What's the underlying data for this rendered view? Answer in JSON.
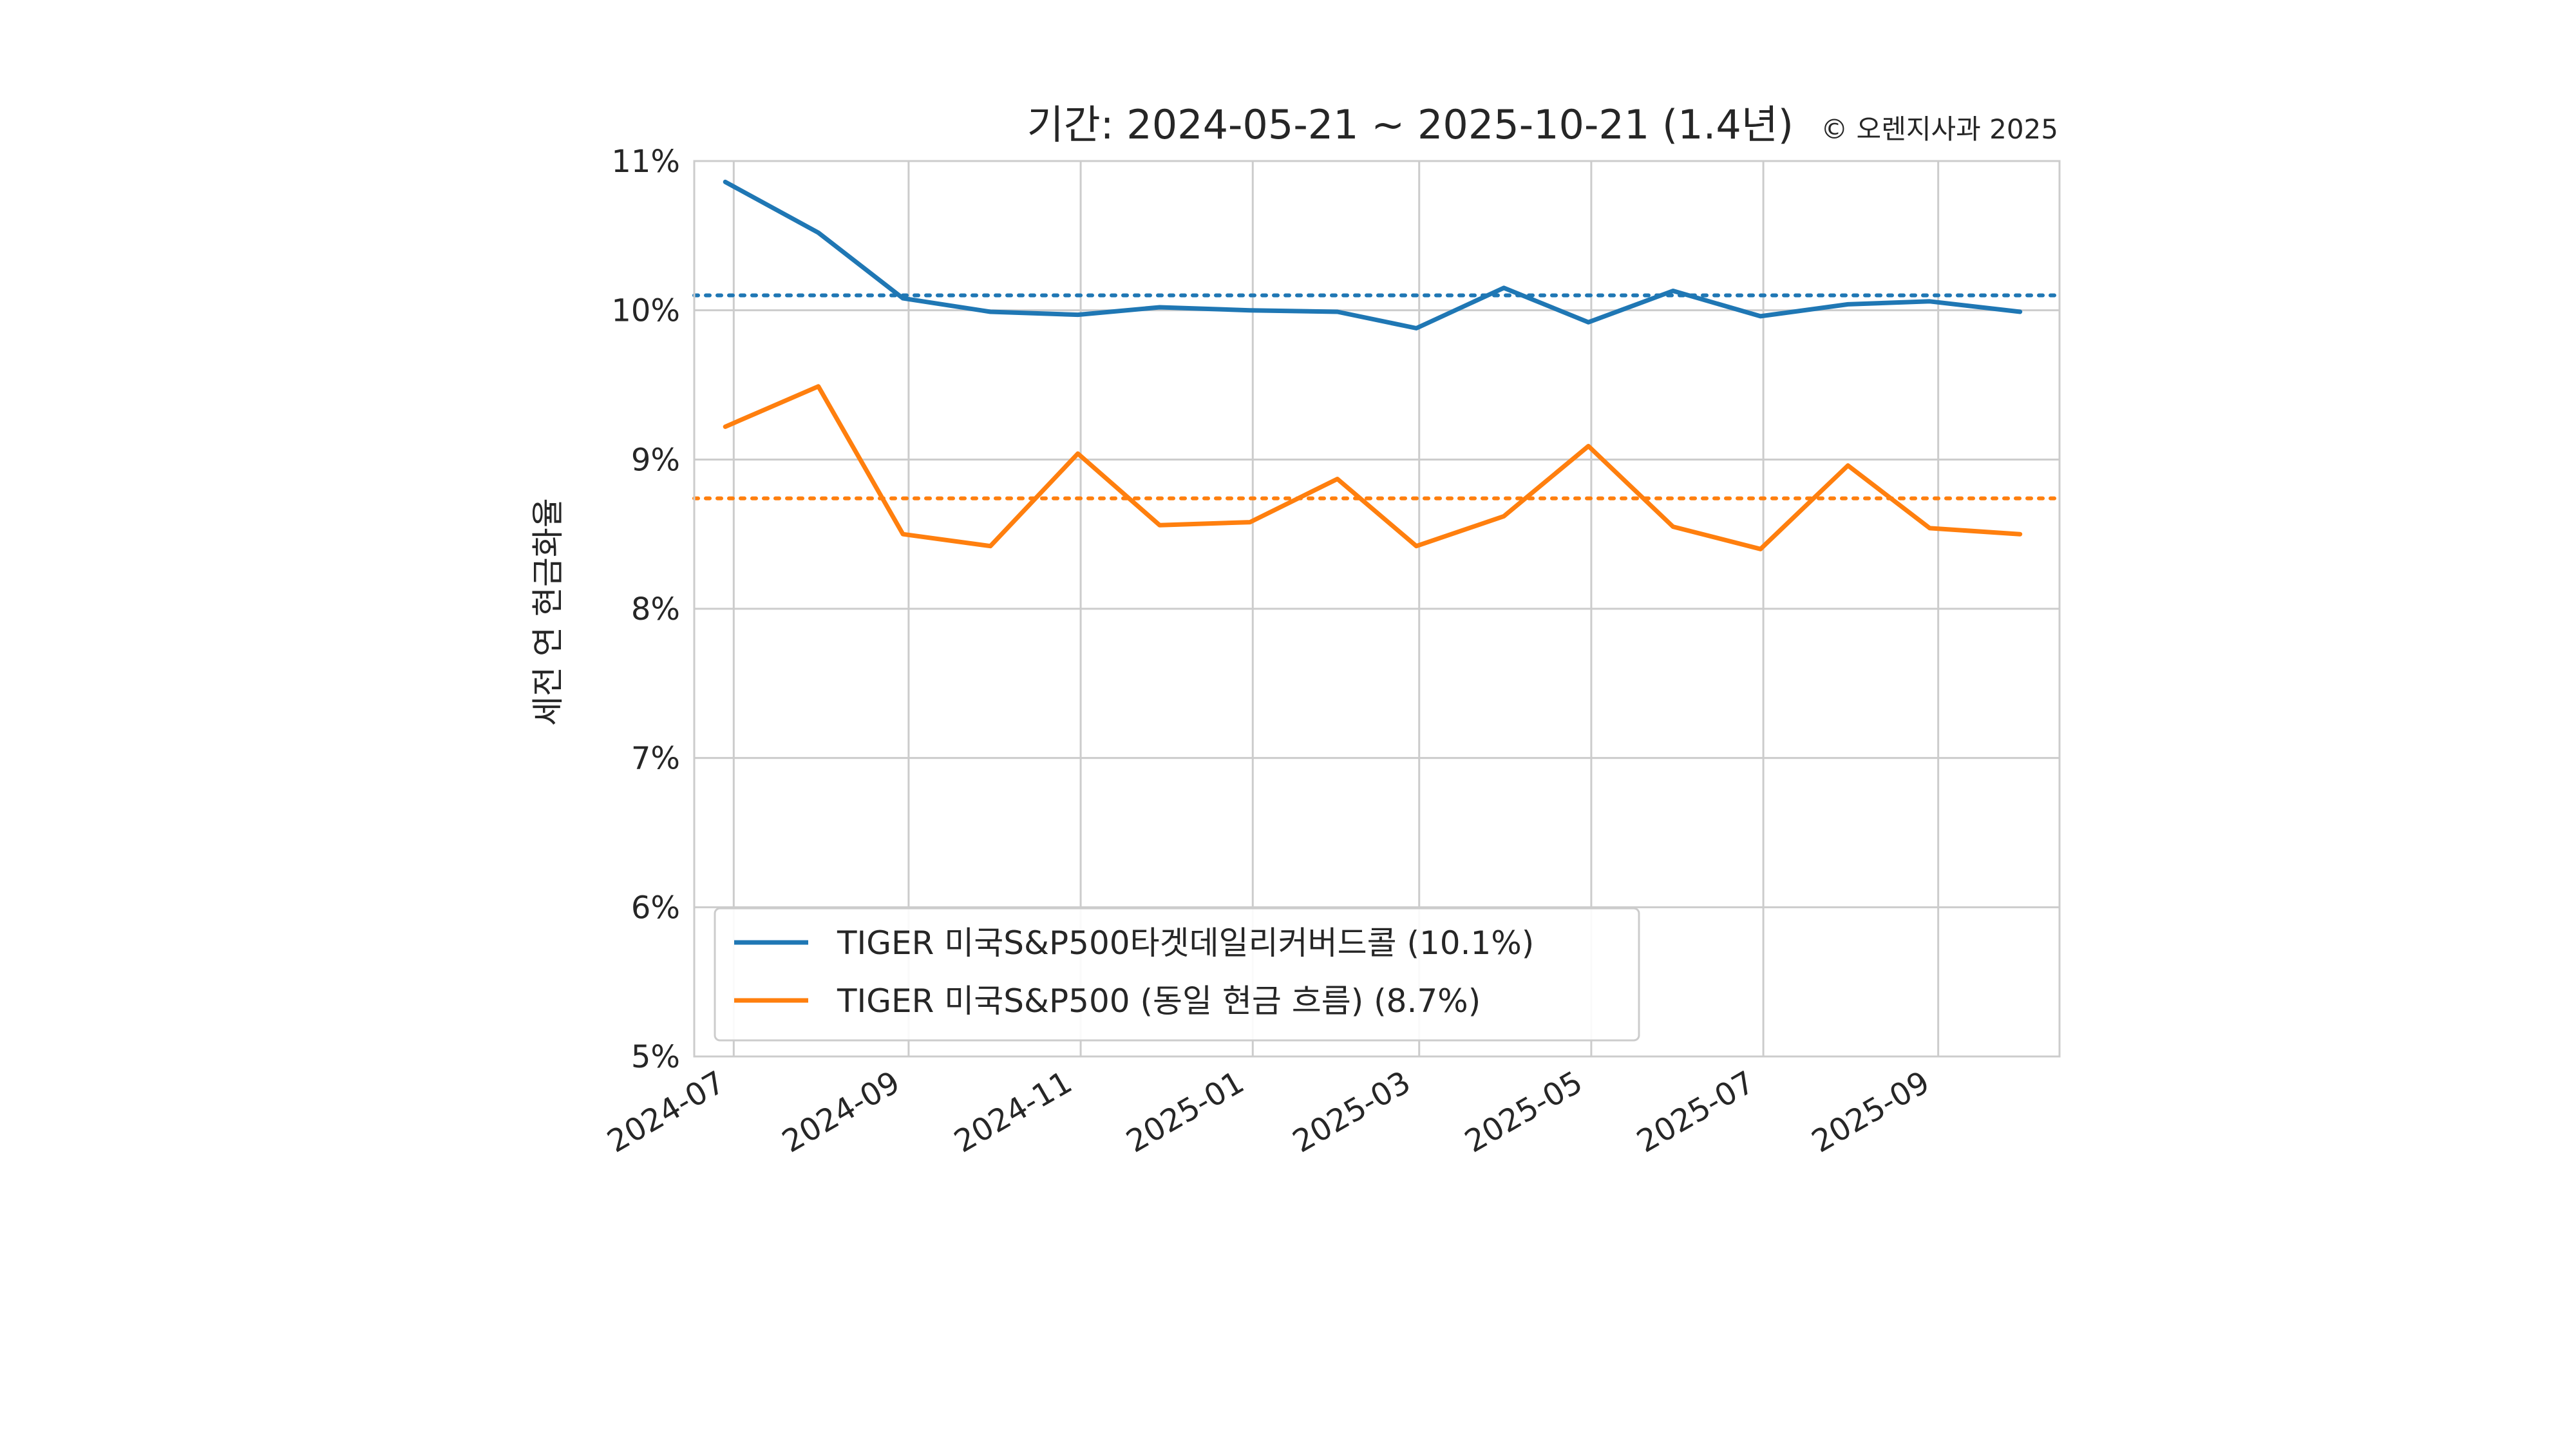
{
  "chart_data": {
    "type": "line",
    "title": "기간: 2024-05-21 ~ 2025-10-21 (1.4년)",
    "copyright": "© 오렌지사과 2025",
    "xlabel": "",
    "ylabel": "세전 연 현금화율",
    "x": [
      "2024-06-28",
      "2024-07-31",
      "2024-08-30",
      "2024-09-30",
      "2024-10-31",
      "2024-11-29",
      "2024-12-31",
      "2025-01-31",
      "2025-02-28",
      "2025-03-31",
      "2025-04-30",
      "2025-05-30",
      "2025-06-30",
      "2025-07-31",
      "2025-08-29",
      "2025-09-30"
    ],
    "x_tick_labels": [
      "2024-07",
      "2024-09",
      "2024-11",
      "2025-01",
      "2025-03",
      "2025-05",
      "2025-07",
      "2025-09"
    ],
    "x_tick_dates": [
      "2024-07-01",
      "2024-09-01",
      "2024-11-01",
      "2025-01-01",
      "2025-03-01",
      "2025-05-01",
      "2025-07-01",
      "2025-09-01"
    ],
    "x_range": [
      "2024-06-17",
      "2025-10-14"
    ],
    "ylim": [
      5,
      11
    ],
    "y_ticks": [
      5,
      6,
      7,
      8,
      9,
      10,
      11
    ],
    "y_tick_labels": [
      "5%",
      "6%",
      "7%",
      "8%",
      "9%",
      "10%",
      "11%"
    ],
    "grid": true,
    "legend_position": "lower-left",
    "series": [
      {
        "name": "TIGER 미국S&P500타겟데일리커버드콜 (10.1%)",
        "color": "#1f77b4",
        "values": [
          10.86,
          10.52,
          10.08,
          9.99,
          9.97,
          10.02,
          10.0,
          9.99,
          9.88,
          10.15,
          9.92,
          10.13,
          9.96,
          10.04,
          10.06,
          9.99
        ],
        "average": 10.1
      },
      {
        "name": "TIGER 미국S&P500 (동일 현금 흐름) (8.7%)",
        "color": "#ff7f0e",
        "values": [
          9.22,
          9.49,
          8.5,
          8.42,
          9.04,
          8.56,
          8.58,
          8.87,
          8.42,
          8.62,
          9.09,
          8.55,
          8.4,
          8.96,
          8.54,
          8.5
        ],
        "average": 8.74
      }
    ]
  }
}
